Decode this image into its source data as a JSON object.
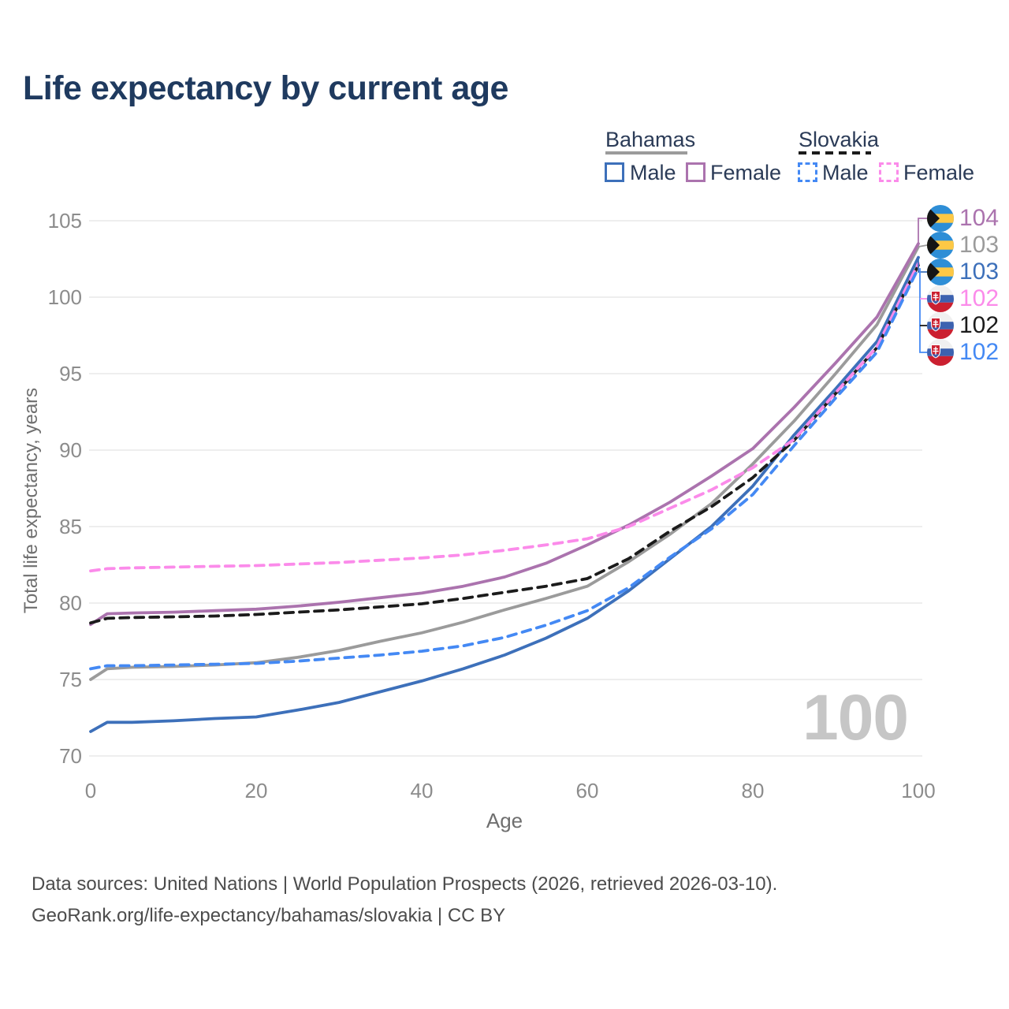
{
  "title": "Life expectancy by current age",
  "legend": {
    "groups": [
      {
        "label": "Bahamas",
        "line_style": "solid",
        "line_color": "#9b9b9b",
        "items": [
          {
            "label": "Male",
            "color": "#3d70ba",
            "style": "solid"
          },
          {
            "label": "Female",
            "color": "#ab73ae",
            "style": "solid"
          }
        ]
      },
      {
        "label": "Slovakia",
        "line_style": "dashed",
        "line_color": "#1b1b1b",
        "items": [
          {
            "label": "Male",
            "color": "#4489f4",
            "style": "dashed"
          },
          {
            "label": "Female",
            "color": "#fb8bea",
            "style": "dashed"
          }
        ]
      }
    ]
  },
  "chart_data": {
    "type": "line",
    "title": "Life expectancy by current age",
    "xlabel": "Age",
    "ylabel": "Total life expectancy, years",
    "xlim": [
      0,
      100
    ],
    "ylim": [
      70,
      105
    ],
    "x_ticks": [
      0,
      20,
      40,
      60,
      80,
      100
    ],
    "y_ticks": [
      70,
      75,
      80,
      85,
      90,
      95,
      100,
      105
    ],
    "grid": "horizontal-only",
    "legend_position": "top-right",
    "x": [
      0,
      2,
      5,
      10,
      15,
      20,
      25,
      30,
      35,
      40,
      45,
      50,
      55,
      60,
      65,
      70,
      75,
      80,
      85,
      90,
      95,
      100
    ],
    "series": [
      {
        "name": "Bahamas Both sexes",
        "country": "Bahamas",
        "sex": "Both",
        "color": "#9b9b9b",
        "dash": "solid",
        "values": [
          75.0,
          75.7,
          75.8,
          75.85,
          75.95,
          76.1,
          76.45,
          76.9,
          77.5,
          78.05,
          78.75,
          79.55,
          80.3,
          81.1,
          82.7,
          84.5,
          86.5,
          89.1,
          91.9,
          95.0,
          98.2,
          103.3
        ],
        "end_value": 103
      },
      {
        "name": "Bahamas Female",
        "country": "Bahamas",
        "sex": "Female",
        "color": "#ab73ae",
        "dash": "solid",
        "values": [
          78.6,
          79.3,
          79.35,
          79.4,
          79.5,
          79.6,
          79.8,
          80.05,
          80.35,
          80.65,
          81.1,
          81.7,
          82.6,
          83.8,
          85.1,
          86.6,
          88.3,
          90.1,
          92.8,
          95.7,
          98.7,
          103.5
        ],
        "end_value": 104
      },
      {
        "name": "Bahamas Male",
        "country": "Bahamas",
        "sex": "Male",
        "color": "#3d70ba",
        "dash": "solid",
        "values": [
          71.6,
          72.2,
          72.2,
          72.3,
          72.45,
          72.55,
          73.0,
          73.5,
          74.2,
          74.9,
          75.7,
          76.6,
          77.7,
          79.0,
          80.8,
          82.9,
          85.0,
          87.65,
          91.0,
          94.0,
          97.1,
          102.6
        ],
        "end_value": 103
      },
      {
        "name": "Slovakia Both sexes",
        "country": "Slovakia",
        "sex": "Both",
        "color": "#1b1b1b",
        "dash": "dashed",
        "values": [
          78.7,
          79.0,
          79.05,
          79.1,
          79.15,
          79.25,
          79.4,
          79.55,
          79.75,
          79.95,
          80.3,
          80.7,
          81.1,
          81.6,
          82.9,
          84.7,
          86.3,
          88.2,
          90.65,
          93.7,
          96.7,
          102.1
        ],
        "end_value": 102
      },
      {
        "name": "Slovakia Female",
        "country": "Slovakia",
        "sex": "Female",
        "color": "#fb8bea",
        "dash": "dashed",
        "values": [
          82.1,
          82.25,
          82.3,
          82.35,
          82.4,
          82.45,
          82.55,
          82.65,
          82.8,
          82.95,
          83.15,
          83.45,
          83.8,
          84.2,
          85.0,
          86.2,
          87.4,
          88.85,
          90.7,
          93.75,
          96.75,
          102.2
        ],
        "end_value": 102
      },
      {
        "name": "Slovakia Male",
        "country": "Slovakia",
        "sex": "Male",
        "color": "#4489f4",
        "dash": "dashed",
        "values": [
          75.7,
          75.9,
          75.9,
          75.95,
          76.0,
          76.05,
          76.2,
          76.4,
          76.6,
          76.85,
          77.2,
          77.75,
          78.55,
          79.5,
          81.0,
          83.0,
          84.85,
          87.1,
          90.3,
          93.4,
          96.4,
          101.9
        ],
        "end_value": 102
      }
    ],
    "watermark": "100"
  },
  "end_labels": [
    {
      "value": "104",
      "flag": "bahamas",
      "series": "Bahamas Female",
      "color": "#ab73ae"
    },
    {
      "value": "103",
      "flag": "bahamas",
      "series": "Bahamas Both sexes",
      "color": "#9b9b9b"
    },
    {
      "value": "103",
      "flag": "bahamas",
      "series": "Bahamas Male",
      "color": "#3d70ba"
    },
    {
      "value": "102",
      "flag": "slovakia",
      "series": "Slovakia Female",
      "color": "#fb8bea"
    },
    {
      "value": "102",
      "flag": "slovakia",
      "series": "Slovakia Both sexes",
      "color": "#1b1b1b"
    },
    {
      "value": "102",
      "flag": "slovakia",
      "series": "Slovakia Male",
      "color": "#4489f4"
    }
  ],
  "flags": {
    "bahamas": {
      "aqua": "#2e8ed6",
      "gold": "#fdc845",
      "black": "#151515"
    },
    "slovakia": {
      "white": "#f0f0f0",
      "blue": "#3c62b0",
      "red": "#cb2030"
    }
  },
  "ui_colors": {
    "title": "#1f3a5f",
    "tick_labels": "#8c8c8c",
    "axis_titles": "#6f6f6f",
    "gridline": "#e8e8e8",
    "watermark": "#c6c6c6",
    "footer": "#4c4c4c"
  },
  "footer": {
    "line1": "Data sources: United Nations | World Population Prospects (2026, retrieved 2026-03-10).",
    "line2": "GeoRank.org/life-expectancy/bahamas/slovakia | CC BY"
  }
}
